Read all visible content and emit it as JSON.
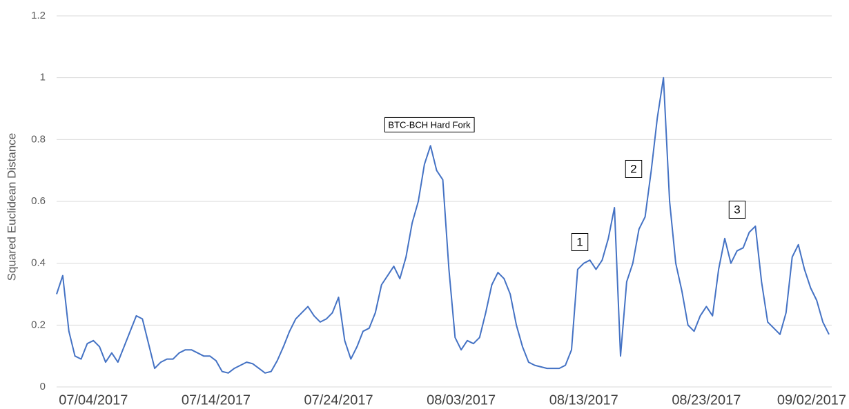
{
  "chart_data": {
    "type": "line",
    "ylabel": "Squared Euclidean Distance",
    "categories": [
      null,
      null,
      null,
      null,
      null,
      null,
      "07/04/2017",
      null,
      null,
      null,
      null,
      null,
      null,
      null,
      null,
      null,
      null,
      null,
      null,
      null,
      null,
      null,
      null,
      null,
      null,
      null,
      "07/14/2017",
      null,
      null,
      null,
      null,
      null,
      null,
      null,
      null,
      null,
      null,
      null,
      null,
      null,
      null,
      null,
      null,
      null,
      null,
      null,
      "07/24/2017",
      null,
      null,
      null,
      null,
      null,
      null,
      null,
      null,
      null,
      null,
      null,
      null,
      null,
      null,
      null,
      null,
      null,
      null,
      null,
      "08/03/2017",
      null,
      null,
      null,
      null,
      null,
      null,
      null,
      null,
      null,
      null,
      null,
      null,
      null,
      null,
      null,
      null,
      null,
      null,
      null,
      "08/13/2017",
      null,
      null,
      null,
      null,
      null,
      null,
      null,
      null,
      null,
      null,
      null,
      null,
      null,
      null,
      null,
      null,
      null,
      null,
      null,
      "08/23/2017",
      null,
      null,
      null,
      null,
      null,
      null,
      null,
      null,
      null,
      null,
      null,
      null,
      null,
      null,
      null,
      null,
      null,
      null,
      null,
      "09/02/2017"
    ],
    "series": [
      {
        "name": "Squared Euclidean Distance",
        "color": "#4472c4",
        "values": [
          0.3,
          0.36,
          0.18,
          0.1,
          0.09,
          0.14,
          0.15,
          0.13,
          0.08,
          0.11,
          0.08,
          0.13,
          0.18,
          0.23,
          0.22,
          0.14,
          0.06,
          0.08,
          0.09,
          0.09,
          0.11,
          0.12,
          0.12,
          0.11,
          0.1,
          0.1,
          0.085,
          0.05,
          0.045,
          0.06,
          0.07,
          0.08,
          0.075,
          0.06,
          0.045,
          0.05,
          0.085,
          0.13,
          0.18,
          0.22,
          0.24,
          0.26,
          0.23,
          0.21,
          0.22,
          0.24,
          0.29,
          0.15,
          0.09,
          0.13,
          0.18,
          0.19,
          0.24,
          0.33,
          0.36,
          0.39,
          0.35,
          0.42,
          0.53,
          0.6,
          0.72,
          0.78,
          0.7,
          0.67,
          0.38,
          0.16,
          0.12,
          0.15,
          0.14,
          0.16,
          0.24,
          0.33,
          0.37,
          0.35,
          0.3,
          0.2,
          0.13,
          0.08,
          0.07,
          0.065,
          0.06,
          0.06,
          0.06,
          0.07,
          0.12,
          0.38,
          0.4,
          0.41,
          0.38,
          0.41,
          0.48,
          0.58,
          0.1,
          0.34,
          0.4,
          0.51,
          0.55,
          0.7,
          0.87,
          1.0,
          0.6,
          0.4,
          0.31,
          0.2,
          0.18,
          0.23,
          0.26,
          0.23,
          0.38,
          0.48,
          0.4,
          0.44,
          0.45,
          0.5,
          0.52,
          0.34,
          0.21,
          0.19,
          0.17,
          0.24,
          0.42,
          0.46,
          0.38,
          0.32,
          0.28,
          0.21,
          0.17
        ]
      }
    ],
    "annotations": [
      "BTC-BCH Hard Fork",
      "1",
      "2",
      "3"
    ],
    "ylim": [
      0,
      1.2
    ],
    "yticks": [
      0,
      0.2,
      0.4,
      0.6,
      0.8,
      1,
      1.2
    ],
    "grid": true
  }
}
